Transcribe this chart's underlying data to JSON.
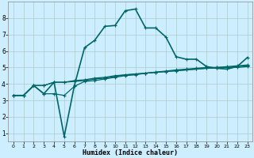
{
  "xlabel": "Humidex (Indice chaleur)",
  "bg_color": "#cceeff",
  "grid_color": "#aacccc",
  "line_color": "#006666",
  "xlim": [
    -0.5,
    23.5
  ],
  "ylim": [
    0.5,
    9.0
  ],
  "xticks": [
    0,
    1,
    2,
    3,
    4,
    5,
    6,
    7,
    8,
    9,
    10,
    11,
    12,
    13,
    14,
    15,
    16,
    17,
    18,
    19,
    20,
    21,
    22,
    23
  ],
  "yticks": [
    1,
    2,
    3,
    4,
    5,
    6,
    7,
    8
  ],
  "lines": [
    [
      3.3,
      3.3,
      3.9,
      3.4,
      3.4,
      3.3,
      3.85,
      4.15,
      4.2,
      4.3,
      4.4,
      4.5,
      4.55,
      4.65,
      4.7,
      4.75,
      4.8,
      4.85,
      4.9,
      4.95,
      5.0,
      5.0,
      5.05,
      5.1
    ],
    [
      3.3,
      3.3,
      3.9,
      3.9,
      4.1,
      4.1,
      4.15,
      4.2,
      4.3,
      4.35,
      4.45,
      4.55,
      4.6,
      4.65,
      4.7,
      4.75,
      4.8,
      4.85,
      4.9,
      4.95,
      4.95,
      5.0,
      5.0,
      5.05
    ],
    [
      3.3,
      3.3,
      3.9,
      3.9,
      4.1,
      4.1,
      4.2,
      4.25,
      4.35,
      4.4,
      4.5,
      4.55,
      4.6,
      4.65,
      4.72,
      4.78,
      4.85,
      4.9,
      4.95,
      5.0,
      5.0,
      5.05,
      5.1,
      5.15
    ],
    [
      3.3,
      3.3,
      3.9,
      3.4,
      4.1,
      0.8,
      3.9,
      6.2,
      6.65,
      7.5,
      7.55,
      8.45,
      8.55,
      7.4,
      7.4,
      6.85,
      5.65,
      5.5,
      5.5,
      5.05,
      4.95,
      4.9,
      5.05,
      5.6
    ]
  ]
}
